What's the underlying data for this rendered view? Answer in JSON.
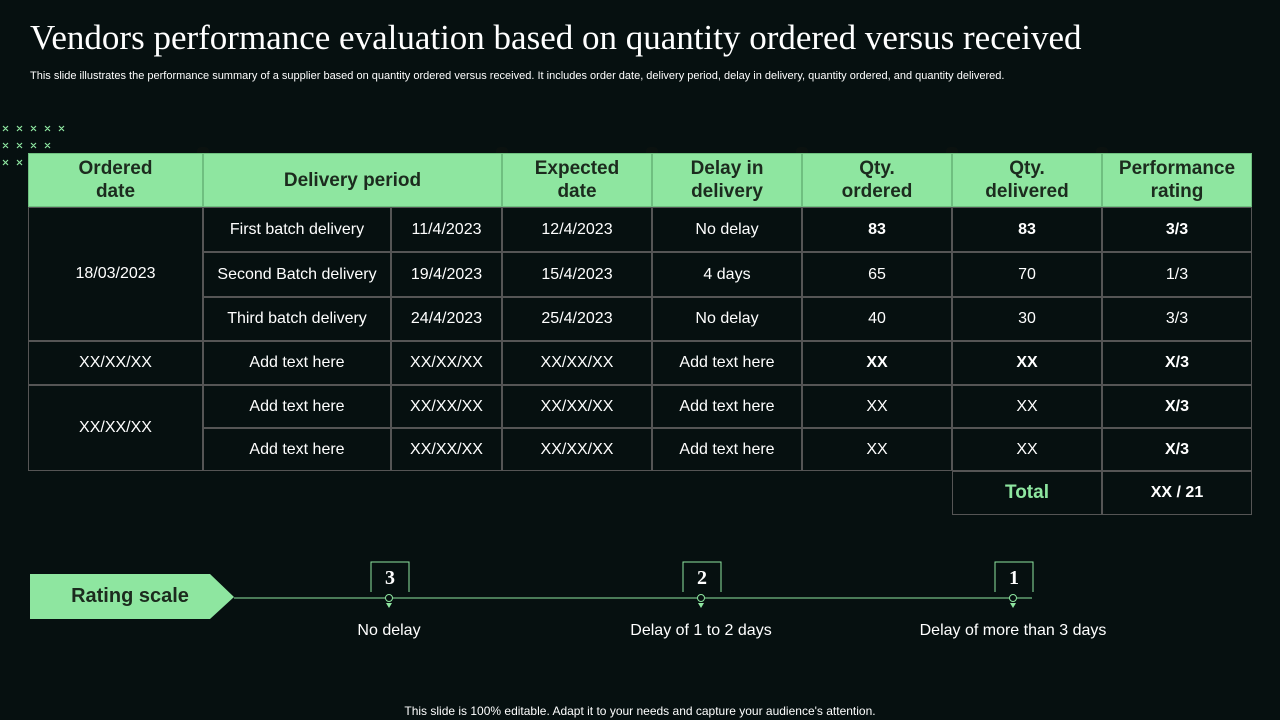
{
  "header": {
    "title": "Vendors performance evaluation based on quantity ordered versus received",
    "subtitle": "This slide illustrates the performance summary of a supplier based on quantity ordered versus received. It includes order date, delivery period, delay in delivery,  quantity ordered, and quantity delivered."
  },
  "table": {
    "columns": [
      "Ordered date",
      "Delivery period",
      "Expected date",
      "Delay in delivery",
      "Qty. ordered",
      "Qty. delivered",
      "Performance rating"
    ],
    "groups": [
      {
        "ordered_date": "18/03/2023",
        "rows": [
          [
            "First batch delivery",
            "11/4/2023",
            "12/4/2023",
            "No delay",
            "83",
            "83",
            "3/3"
          ],
          [
            "Second  Batch delivery",
            "19/4/2023",
            "15/4/2023",
            "4 days",
            "65",
            "70",
            "1/3"
          ],
          [
            "Third batch delivery",
            "24/4/2023",
            "25/4/2023",
            "No delay",
            "40",
            "30",
            "3/3"
          ]
        ]
      },
      {
        "ordered_date": "XX/XX/XX",
        "rows": [
          [
            "Add text here",
            "XX/XX/XX",
            "XX/XX/XX",
            "Add text here",
            "XX",
            "XX",
            "X/3"
          ]
        ]
      },
      {
        "ordered_date": "XX/XX/XX",
        "rows": [
          [
            "Add text here",
            "XX/XX/XX",
            "XX/XX/XX",
            "Add text here",
            "XX",
            "XX",
            "X/3"
          ],
          [
            "Add text here",
            "XX/XX/XX",
            "XX/XX/XX",
            "Add text here",
            "XX",
            "XX",
            "X/3"
          ]
        ]
      }
    ],
    "total": {
      "label": "Total",
      "value": "XX / 21"
    }
  },
  "rating_scale": {
    "label": "Rating scale",
    "items": [
      {
        "score": "3",
        "label": "No delay"
      },
      {
        "score": "2",
        "label": "Delay of 1 to 2 days"
      },
      {
        "score": "1",
        "label": "Delay of more than 3 days"
      }
    ]
  },
  "footer": "This slide is 100% editable. Adapt it to your needs and capture your audience's attention."
}
